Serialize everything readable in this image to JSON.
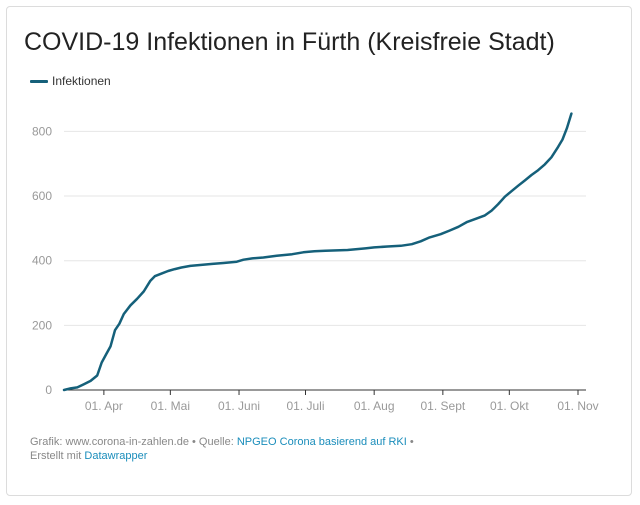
{
  "title": "COVID-19 Infektionen in Fürth (Kreisfreie Stadt)",
  "colors": {
    "line": "#15607a",
    "grid": "#e6e6e6",
    "axis": "#333333",
    "tick": "#999999",
    "link": "#1a8dbb"
  },
  "footer": {
    "grafik_text": "Grafik: www.corona-in-zahlen.de • Quelle:",
    "source_link": "NPGEO Corona basierend auf RKI",
    "bullet": "•",
    "created_text": "Erstellt mit",
    "tool_link": "Datawrapper"
  },
  "chart_data": {
    "type": "line",
    "title": "COVID-19 Infektionen in Fürth (Kreisfreie Stadt)",
    "xlabel": "",
    "ylabel": "",
    "x_range": [
      "2020-03-14",
      "2020-10-29"
    ],
    "ylim": [
      0,
      860
    ],
    "yticks": [
      0,
      200,
      400,
      600,
      800
    ],
    "xticks": [
      {
        "date": "2020-04-01",
        "label": "01. Apr"
      },
      {
        "date": "2020-05-01",
        "label": "01. Mai"
      },
      {
        "date": "2020-06-01",
        "label": "01. Juni"
      },
      {
        "date": "2020-07-01",
        "label": "01. Juli"
      },
      {
        "date": "2020-08-01",
        "label": "01. Aug"
      },
      {
        "date": "2020-09-01",
        "label": "01. Sept"
      },
      {
        "date": "2020-10-01",
        "label": "01. Okt"
      },
      {
        "date": "2020-11-01",
        "label": "01. Nov"
      }
    ],
    "grid": true,
    "legend": "top-left",
    "series": [
      {
        "name": "Infektionen",
        "points": [
          [
            "2020-03-14",
            0
          ],
          [
            "2020-03-17",
            5
          ],
          [
            "2020-03-20",
            8
          ],
          [
            "2020-03-23",
            18
          ],
          [
            "2020-03-26",
            28
          ],
          [
            "2020-03-29",
            45
          ],
          [
            "2020-03-31",
            85
          ],
          [
            "2020-04-02",
            110
          ],
          [
            "2020-04-04",
            135
          ],
          [
            "2020-04-06",
            185
          ],
          [
            "2020-04-08",
            205
          ],
          [
            "2020-04-10",
            235
          ],
          [
            "2020-04-13",
            262
          ],
          [
            "2020-04-16",
            282
          ],
          [
            "2020-04-19",
            305
          ],
          [
            "2020-04-22",
            338
          ],
          [
            "2020-04-24",
            352
          ],
          [
            "2020-04-27",
            360
          ],
          [
            "2020-04-30",
            368
          ],
          [
            "2020-05-03",
            374
          ],
          [
            "2020-05-06",
            379
          ],
          [
            "2020-05-10",
            384
          ],
          [
            "2020-05-15",
            387
          ],
          [
            "2020-05-20",
            390
          ],
          [
            "2020-05-25",
            393
          ],
          [
            "2020-05-31",
            397
          ],
          [
            "2020-06-03",
            403
          ],
          [
            "2020-06-07",
            407
          ],
          [
            "2020-06-12",
            410
          ],
          [
            "2020-06-18",
            415
          ],
          [
            "2020-06-25",
            420
          ],
          [
            "2020-06-30",
            426
          ],
          [
            "2020-07-05",
            429
          ],
          [
            "2020-07-10",
            431
          ],
          [
            "2020-07-20",
            433
          ],
          [
            "2020-07-28",
            438
          ],
          [
            "2020-08-01",
            441
          ],
          [
            "2020-08-07",
            444
          ],
          [
            "2020-08-13",
            446
          ],
          [
            "2020-08-18",
            451
          ],
          [
            "2020-08-22",
            460
          ],
          [
            "2020-08-26",
            472
          ],
          [
            "2020-08-31",
            482
          ],
          [
            "2020-09-04",
            493
          ],
          [
            "2020-09-08",
            505
          ],
          [
            "2020-09-12",
            520
          ],
          [
            "2020-09-16",
            530
          ],
          [
            "2020-09-20",
            540
          ],
          [
            "2020-09-23",
            555
          ],
          [
            "2020-09-26",
            575
          ],
          [
            "2020-09-29",
            598
          ],
          [
            "2020-10-02",
            615
          ],
          [
            "2020-10-05",
            632
          ],
          [
            "2020-10-08",
            648
          ],
          [
            "2020-10-11",
            665
          ],
          [
            "2020-10-14",
            680
          ],
          [
            "2020-10-17",
            698
          ],
          [
            "2020-10-20",
            720
          ],
          [
            "2020-10-23",
            752
          ],
          [
            "2020-10-25",
            775
          ],
          [
            "2020-10-27",
            810
          ],
          [
            "2020-10-29",
            855
          ]
        ]
      }
    ]
  }
}
